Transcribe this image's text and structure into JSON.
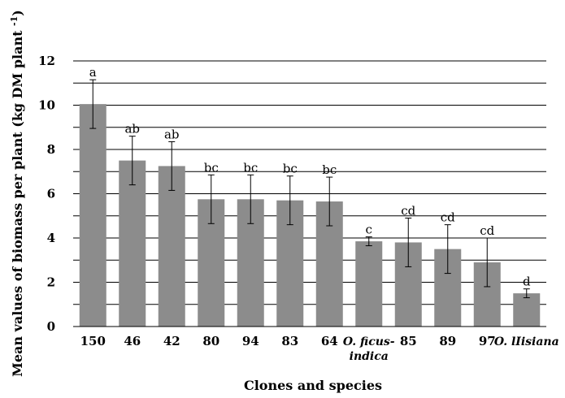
{
  "chart_data": {
    "type": "bar",
    "xlabel": "Clones and species",
    "ylabel": "Mean values of biomass per plant (kg DM plant ",
    "ylabel_sup": "-1",
    "ylabel_end": ")",
    "ylim": [
      0,
      12
    ],
    "yticks": [
      "0",
      "2",
      "4",
      "6",
      "8",
      "10",
      "12"
    ],
    "grid": true,
    "bar_color": "#8c8c8c",
    "categories": [
      {
        "line1": "150",
        "line2": "",
        "italic": false
      },
      {
        "line1": "46",
        "line2": "",
        "italic": false
      },
      {
        "line1": "42",
        "line2": "",
        "italic": false
      },
      {
        "line1": "80",
        "line2": "",
        "italic": false
      },
      {
        "line1": "94",
        "line2": "",
        "italic": false
      },
      {
        "line1": "83",
        "line2": "",
        "italic": false
      },
      {
        "line1": "64",
        "line2": "",
        "italic": false
      },
      {
        "line1": "O. ficus-",
        "line2": "indica",
        "italic": true
      },
      {
        "line1": "85",
        "line2": "",
        "italic": false
      },
      {
        "line1": "89",
        "line2": "",
        "italic": false
      },
      {
        "line1": "97",
        "line2": "",
        "italic": false
      },
      {
        "line1": "O. lIisiana",
        "line2": "",
        "italic": true
      }
    ],
    "values": [
      10.05,
      7.5,
      7.25,
      5.75,
      5.75,
      5.7,
      5.65,
      3.85,
      3.8,
      3.5,
      2.9,
      1.5
    ],
    "error": [
      1.1,
      1.1,
      1.1,
      1.1,
      1.1,
      1.1,
      1.1,
      0.2,
      1.1,
      1.1,
      1.1,
      0.2
    ],
    "significance": [
      "a",
      "ab",
      "ab",
      "bc",
      "bc",
      "bc",
      "bc",
      "c",
      "cd",
      "cd",
      "cd",
      "d"
    ]
  }
}
